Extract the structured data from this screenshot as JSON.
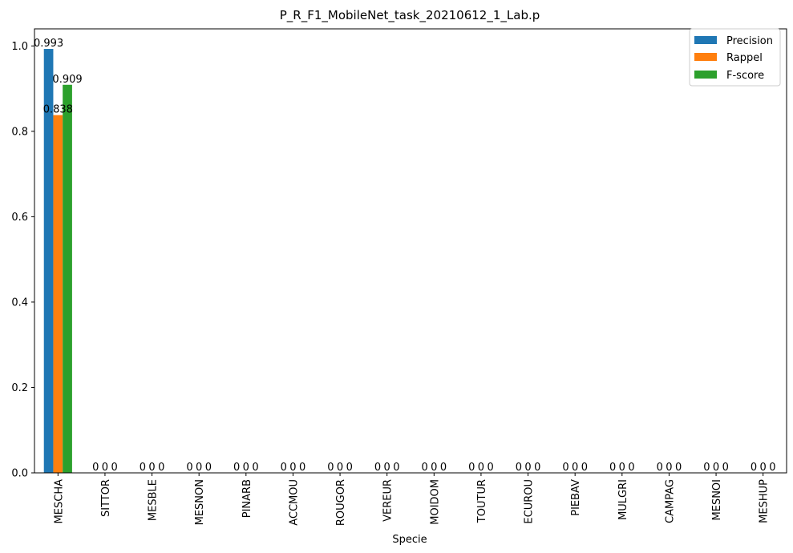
{
  "chart_data": {
    "type": "bar",
    "title": "P_R_F1_MobileNet_task_20210612_1_Lab.p",
    "xlabel": "Specie",
    "ylabel": "",
    "ylim": [
      0,
      1.04
    ],
    "yticks": [
      "0.0",
      "0.2",
      "0.4",
      "0.6",
      "0.8",
      "1.0"
    ],
    "legend_position": "top-right",
    "categories": [
      "MESCHA",
      "SITTOR",
      "MESBLE",
      "MESNON",
      "PINARB",
      "ACCMOU",
      "ROUGOR",
      "VEREUR",
      "MOIDOM",
      "TOUTUR",
      "ECUROU",
      "PIEBAV",
      "MULGRI",
      "CAMPAG",
      "MESNOI",
      "MESHUP"
    ],
    "series": [
      {
        "name": "Precision",
        "color": "#1f77b4",
        "values": [
          0.993,
          0,
          0,
          0,
          0,
          0,
          0,
          0,
          0,
          0,
          0,
          0,
          0,
          0,
          0,
          0
        ],
        "labels": [
          "0.993",
          "0",
          "0",
          "0",
          "0",
          "0",
          "0",
          "0",
          "0",
          "0",
          "0",
          "0",
          "0",
          "0",
          "0",
          "0"
        ]
      },
      {
        "name": "Rappel",
        "color": "#ff7f0e",
        "values": [
          0.838,
          0,
          0,
          0,
          0,
          0,
          0,
          0,
          0,
          0,
          0,
          0,
          0,
          0,
          0,
          0
        ],
        "labels": [
          "0.838",
          "0",
          "0",
          "0",
          "0",
          "0",
          "0",
          "0",
          "0",
          "0",
          "0",
          "0",
          "0",
          "0",
          "0",
          "0"
        ]
      },
      {
        "name": "F-score",
        "color": "#2ca02c",
        "values": [
          0.909,
          0,
          0,
          0,
          0,
          0,
          0,
          0,
          0,
          0,
          0,
          0,
          0,
          0,
          0,
          0
        ],
        "labels": [
          "0.909",
          "0",
          "0",
          "0",
          "0",
          "0",
          "0",
          "0",
          "0",
          "0",
          "0",
          "0",
          "0",
          "0",
          "0",
          "0"
        ]
      }
    ]
  }
}
